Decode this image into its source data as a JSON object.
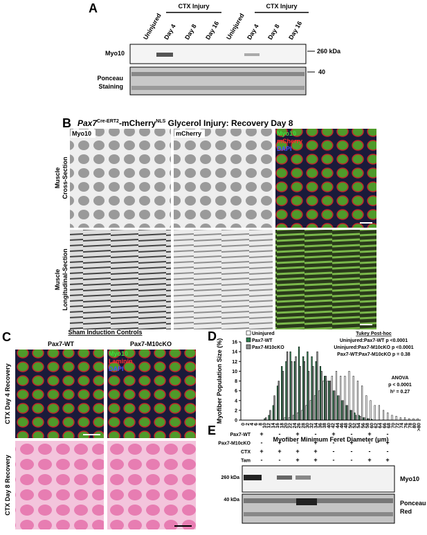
{
  "panel_a": {
    "letter": "A",
    "groups": [
      "CTX Injury",
      "CTX Injury"
    ],
    "lanes": [
      "Uninjured",
      "Day 4",
      "Day 8",
      "Day 16",
      "Uninjured",
      "Day 4",
      "Day 8",
      "Day 16"
    ],
    "rows": [
      "Myo10",
      "Ponceau Staining"
    ],
    "markers": [
      "260 kDa",
      "40"
    ]
  },
  "panel_b": {
    "letter": "B",
    "title": [
      "Pax7",
      "Cre-ERT2",
      "-mCherry",
      "NLS",
      " Glycerol Injury: Recovery Day 8"
    ],
    "columns": [
      "Myo10",
      "mCherry"
    ],
    "merge": [
      "Myo10",
      "mCherry",
      "DAPI"
    ],
    "rows": [
      [
        "Muscle",
        "Cross-Section"
      ],
      [
        "Muscle",
        "Longitudinal-Section"
      ]
    ]
  },
  "panel_c": {
    "letter": "C",
    "title": "Sham Induction Controls",
    "columns": [
      "Pax7-WT",
      "Pax7-M10cKO"
    ],
    "merge": [
      "Myo10",
      "Laminin",
      "DAPI"
    ],
    "rows": [
      "CTX Day 4 Recovery",
      "CTX Day 8 Recovery"
    ]
  },
  "panel_e": {
    "letter": "E",
    "conditions": [
      {
        "name": "Pax7-WT",
        "signs": [
          "+",
          "-",
          "+",
          "-",
          "+",
          "-",
          "+",
          "-"
        ]
      },
      {
        "name": "Pax7-M10cKO",
        "signs": [
          "-",
          "+",
          "-",
          "+",
          "-",
          "+",
          "-",
          "+"
        ]
      },
      {
        "name": "CTX",
        "signs": [
          "+",
          "+",
          "+",
          "+",
          "-",
          "-",
          "-",
          "-"
        ]
      },
      {
        "name": "Tam",
        "signs": [
          "-",
          "-",
          "+",
          "+",
          "-",
          "-",
          "+",
          "+"
        ]
      }
    ],
    "markers": [
      "260 kDa",
      "40 kDa"
    ],
    "rows": [
      "Myo10",
      "Ponceau Red"
    ]
  },
  "chart_data": {
    "type": "bar",
    "letter": "D",
    "y_label": "Myofiber Population Size (%)",
    "x_label": "Myofiber Minimum Feret Diameter (μm)",
    "categories": [
      "0",
      "2",
      "4",
      "6",
      "8",
      "10",
      "12",
      "14",
      "16",
      "18",
      "20",
      "22",
      "24",
      "26",
      "28",
      "30",
      "32",
      "34",
      "36",
      "38",
      "40",
      "42",
      "44",
      "46",
      "48",
      "50",
      "52",
      "54",
      "56",
      "58",
      "60",
      "62",
      "64",
      "66",
      "68",
      "70",
      "72",
      "74",
      "76",
      "78",
      "80",
      ">80"
    ],
    "series": [
      {
        "name": "Uninjured",
        "color": "#ffffff",
        "values": [
          0,
          0,
          0,
          0,
          0,
          0,
          0,
          0,
          0,
          0,
          0.5,
          0.5,
          1,
          1.5,
          2,
          3,
          4,
          5,
          6,
          8,
          8,
          9,
          10,
          9,
          9,
          10,
          9,
          8,
          7,
          5,
          4,
          3,
          3,
          2,
          1.5,
          1,
          0.8,
          0.5,
          0.5,
          0.3,
          0.3,
          0.3
        ]
      },
      {
        "name": "Pax7-WT",
        "color": "#2e7d4f",
        "values": [
          0,
          0,
          0,
          0,
          0,
          0.3,
          1,
          3,
          7,
          11,
          12,
          14,
          12,
          15,
          13,
          14,
          13,
          12,
          11,
          9,
          8,
          6,
          5,
          4,
          3,
          2,
          1.5,
          1,
          0.5,
          0.3,
          0.2,
          0,
          0,
          0,
          0,
          0,
          0,
          0,
          0,
          0,
          0,
          0
        ]
      },
      {
        "name": "Pax7-M10cKO",
        "color": "#8c8c8c",
        "values": [
          0,
          0,
          0,
          0,
          0,
          0.5,
          2,
          5,
          8,
          10,
          14,
          12,
          13,
          11,
          12,
          10,
          11,
          14,
          10,
          9,
          8,
          6,
          5,
          4,
          3,
          2,
          1,
          0.8,
          0.5,
          0.3,
          0,
          0,
          0,
          0,
          0,
          0,
          0,
          0,
          0,
          0,
          0,
          0
        ]
      }
    ],
    "ylim": [
      0,
      16
    ],
    "yticks": [
      0,
      2,
      4,
      6,
      8,
      10,
      12,
      14,
      16
    ],
    "annotations": [
      "Tukey Post-hoc",
      "Uninjured:Pax7-WT p <0.0001",
      "Uninjured:Pax7-M10cKO p <0.0001",
      "Pax7-WT:Pax7-M10cKO p = 0.38",
      "ANOVA",
      "p < 0.0001",
      "h² = 0.27"
    ]
  }
}
